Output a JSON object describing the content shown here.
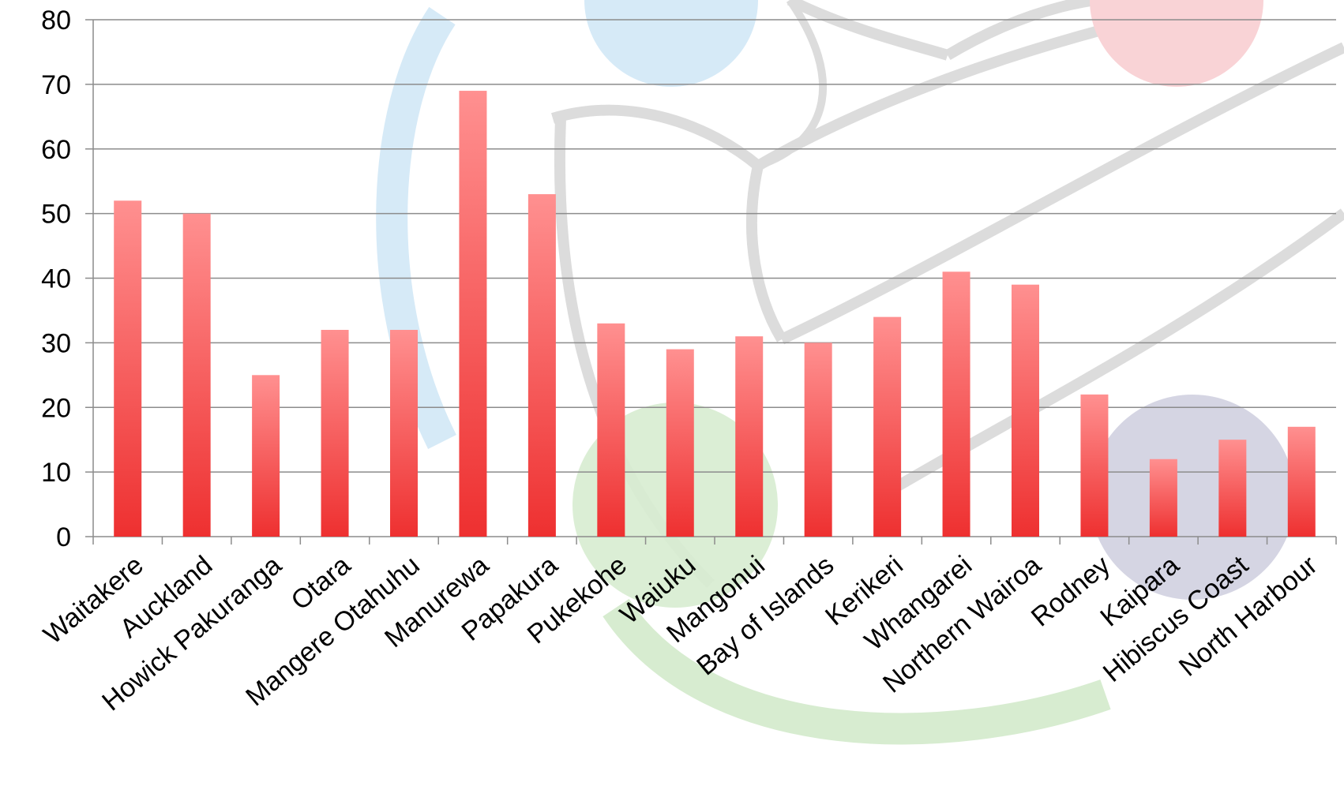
{
  "chart_data": {
    "type": "bar",
    "title": "",
    "xlabel": "",
    "ylabel": "",
    "categories": [
      "Waitakere",
      "Auckland",
      "Howick Pakuranga",
      "Otara",
      "Mangere Otahuhu",
      "Manurewa",
      "Papakura",
      "Pukekohe",
      "Waiuku",
      "Mangonui",
      "Bay of Islands",
      "Kerikeri",
      "Whangarei",
      "Northern Wairoa",
      "Rodney",
      "Kaipara",
      "Hibiscus Coast",
      "North Harbour"
    ],
    "values": [
      52,
      50,
      25,
      32,
      32,
      69,
      53,
      33,
      29,
      31,
      30,
      34,
      41,
      39,
      22,
      12,
      15,
      17
    ],
    "ylim": [
      0,
      80
    ],
    "yticks": [
      "0",
      "10",
      "20",
      "30",
      "40",
      "50",
      "60",
      "70",
      "80"
    ],
    "grid": true,
    "legend": "none",
    "colors": {
      "bar_top": "#ff8f8f",
      "bar_bottom": "#ee3131",
      "gridline": "#8c8c8c",
      "watermark_blue": "#d6eaf7",
      "watermark_red": "#f9d3d6",
      "watermark_green": "#d7ecd0",
      "watermark_purple": "#d3d3e2",
      "watermark_grey": "#dcdcdc"
    }
  }
}
